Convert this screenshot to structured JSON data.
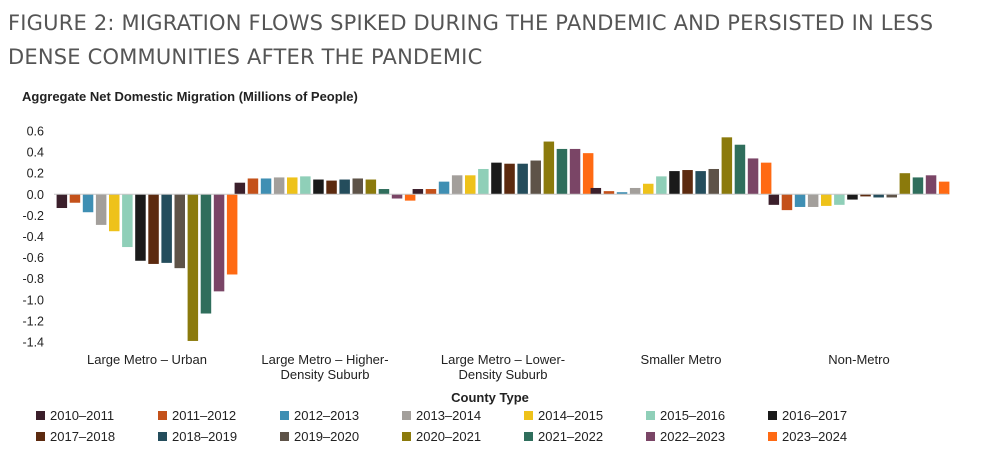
{
  "figure_title": "FIGURE 2: MIGRATION FLOWS SPIKED DURING THE PANDEMIC AND PERSISTED IN LESS DENSE COMMUNITIES AFTER THE PANDEMIC",
  "chart_data": {
    "type": "bar",
    "title": "Aggregate Net Domestic Migration (Millions of People)",
    "xlabel": "County Type",
    "ylabel": "",
    "ylim": [
      -1.4,
      0.6
    ],
    "yticks": [
      "0.6",
      "0.4",
      "0.2",
      "0.0",
      "-0.2",
      "-0.4",
      "-0.6",
      "-0.8",
      "-1.0",
      "-1.2",
      "-1.4"
    ],
    "ytick_values": [
      0.6,
      0.4,
      0.2,
      0.0,
      -0.2,
      -0.4,
      -0.6,
      -0.8,
      -1.0,
      -1.2,
      -1.4
    ],
    "grid": false,
    "legend_position": "bottom",
    "categories": [
      [
        "Large Metro – Urban"
      ],
      [
        "Large Metro – Higher-",
        "Density Suburb"
      ],
      [
        "Large Metro – Lower-",
        "Density Suburb"
      ],
      [
        "Smaller Metro"
      ],
      [
        "Non-Metro"
      ]
    ],
    "series": [
      {
        "name": "2010–2011",
        "color": "#3b1f2b",
        "values": [
          -0.13,
          0.11,
          0.05,
          0.06,
          -0.1
        ]
      },
      {
        "name": "2011–2012",
        "color": "#c4511a",
        "values": [
          -0.08,
          0.15,
          0.05,
          0.03,
          -0.15
        ]
      },
      {
        "name": "2012–2013",
        "color": "#3f8fb3",
        "values": [
          -0.17,
          0.15,
          0.12,
          0.02,
          -0.12
        ]
      },
      {
        "name": "2013–2014",
        "color": "#a39f9b",
        "values": [
          -0.29,
          0.16,
          0.18,
          0.06,
          -0.12
        ]
      },
      {
        "name": "2014–2015",
        "color": "#eec21a",
        "values": [
          -0.35,
          0.16,
          0.18,
          0.1,
          -0.11
        ]
      },
      {
        "name": "2015–2016",
        "color": "#8fcfb8",
        "values": [
          -0.5,
          0.17,
          0.24,
          0.17,
          -0.1
        ]
      },
      {
        "name": "2016–2017",
        "color": "#1a1a1a",
        "values": [
          -0.63,
          0.14,
          0.3,
          0.22,
          -0.05
        ]
      },
      {
        "name": "2017–2018",
        "color": "#5c2a0f",
        "values": [
          -0.66,
          0.13,
          0.29,
          0.23,
          -0.02
        ]
      },
      {
        "name": "2018–2019",
        "color": "#244d5c",
        "values": [
          -0.65,
          0.14,
          0.29,
          0.22,
          -0.03
        ]
      },
      {
        "name": "2019–2020",
        "color": "#5e5348",
        "values": [
          -0.7,
          0.15,
          0.32,
          0.24,
          -0.03
        ]
      },
      {
        "name": "2020–2021",
        "color": "#8b7a0c",
        "values": [
          -1.39,
          0.14,
          0.5,
          0.54,
          0.2
        ]
      },
      {
        "name": "2021–2022",
        "color": "#2f6e5c",
        "values": [
          -1.13,
          0.05,
          0.43,
          0.47,
          0.16
        ]
      },
      {
        "name": "2022–2023",
        "color": "#7a4566",
        "values": [
          -0.92,
          -0.04,
          0.43,
          0.34,
          0.18
        ]
      },
      {
        "name": "2023–2024",
        "color": "#ff6a13",
        "values": [
          -0.76,
          -0.06,
          0.39,
          0.3,
          0.12
        ]
      }
    ]
  }
}
